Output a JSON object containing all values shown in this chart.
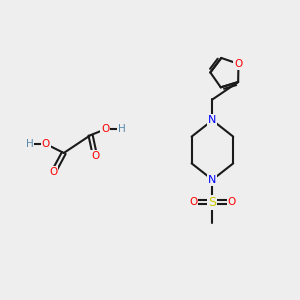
{
  "bg_color": "#eeeeee",
  "bond_color": "#1a1a1a",
  "oxygen_color": "#ff0000",
  "nitrogen_color": "#0000ff",
  "sulfur_color": "#cccc00",
  "hydrogen_color": "#5588aa",
  "linewidth": 1.5,
  "figsize": [
    3.0,
    3.0
  ],
  "dpi": 100,
  "xlim": [
    0,
    10
  ],
  "ylim": [
    0,
    10
  ]
}
